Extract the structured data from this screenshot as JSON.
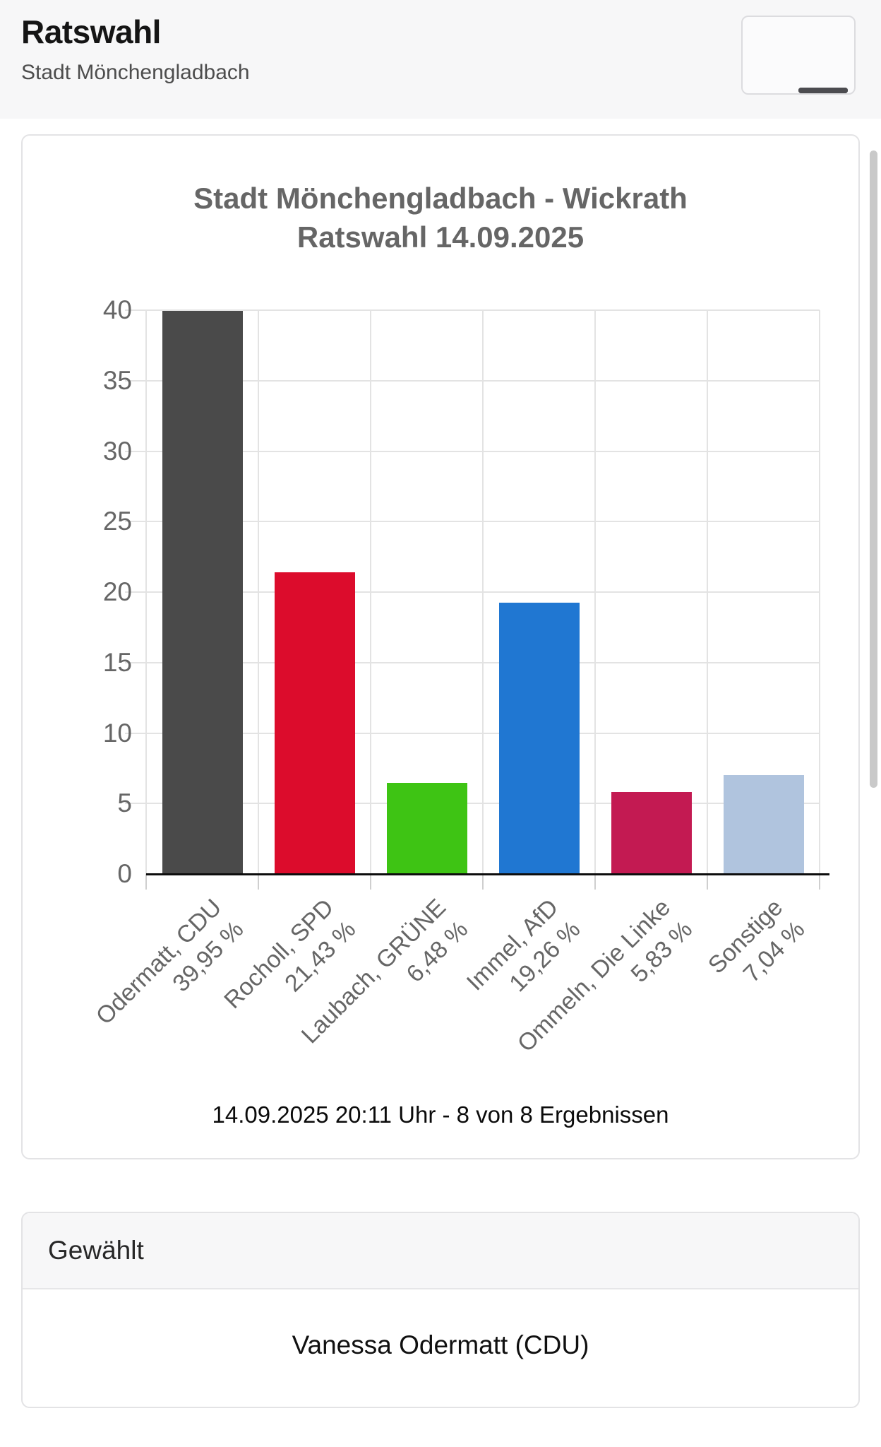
{
  "header": {
    "title": "Ratswahl",
    "subtitle": "Stadt Mönchengladbach"
  },
  "icons": {
    "menu": "hamburger-icon"
  },
  "chart_card": {
    "title_line1": "Stadt Mönchengladbach - Wickrath",
    "title_line2": "Ratswahl 14.09.2025",
    "status": "14.09.2025 20:11 Uhr - 8 von 8 Ergebnissen"
  },
  "chart_data": {
    "type": "bar",
    "title": "Stadt Mönchengladbach - Wickrath Ratswahl 14.09.2025",
    "categories": [
      "Odermatt, CDU",
      "Rocholl, SPD",
      "Laubach, GRÜNE",
      "Immel, AfD",
      "Ommeln, Die Linke",
      "Sonstige"
    ],
    "bar_labels": [
      "39,95 %",
      "21,43 %",
      "6,48 %",
      "19,26 %",
      "5,83 %",
      "7,04 %"
    ],
    "values": [
      39.95,
      21.43,
      6.48,
      19.26,
      5.83,
      7.04
    ],
    "colors": [
      "#4a4a4a",
      "#dc0c2c",
      "#3ec414",
      "#2077d2",
      "#c31a52",
      "#b0c4de"
    ],
    "ylim": [
      0,
      40
    ],
    "yticks": [
      0,
      5,
      10,
      15,
      20,
      25,
      30,
      35,
      40
    ],
    "xlabel": "",
    "ylabel": "",
    "grid": true,
    "legend": false
  },
  "elected": {
    "header": "Gewählt",
    "person": "Vanessa Odermatt (CDU)"
  }
}
